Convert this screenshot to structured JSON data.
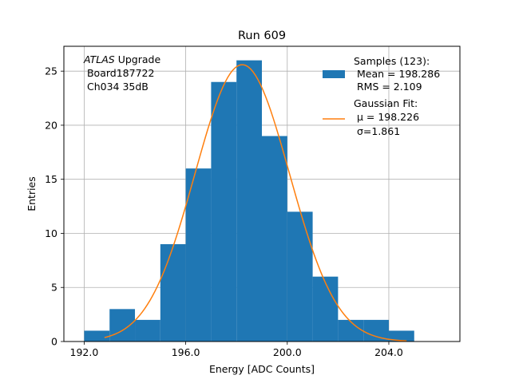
{
  "chart_data": {
    "type": "bar",
    "title": "Run 609",
    "xlabel": "Energy [ADC Counts]",
    "ylabel": "Entries",
    "xlim": [
      191.2,
      206.8
    ],
    "ylim": [
      0,
      27.3
    ],
    "xticks": [
      192.0,
      196.0,
      200.0,
      204.0
    ],
    "xtick_labels": [
      "192.0",
      "196.0",
      "200.0",
      "204.0"
    ],
    "yticks": [
      0,
      5,
      10,
      15,
      20,
      25
    ],
    "ytick_labels": [
      "0",
      "5",
      "10",
      "15",
      "20",
      "25"
    ],
    "grid": true,
    "bin_edges": [
      192,
      193,
      194,
      195,
      196,
      197,
      198,
      199,
      200,
      201,
      202,
      203,
      204,
      205
    ],
    "counts": [
      1,
      3,
      2,
      9,
      16,
      24,
      26,
      19,
      12,
      6,
      2,
      2,
      1
    ],
    "series": [
      {
        "type": "histogram",
        "color": "#1f77b4"
      },
      {
        "type": "line",
        "color": "#ff7f0e",
        "mu": 198.226,
        "sigma": 1.861,
        "amplitude": 25.6,
        "x_range": [
          192.8,
          204.7
        ]
      }
    ],
    "annotation": {
      "lines": [
        {
          "italic": "ATLAS",
          "rest": " Upgrade"
        },
        {
          "text": " Board187722"
        },
        {
          "text": " Ch034 35dB"
        }
      ],
      "placement": "top-left"
    },
    "legend": {
      "placement": "top-right",
      "entries": [
        {
          "lines": [
            "Samples (123):",
            " Mean = 198.286",
            " RMS = 2.109"
          ],
          "marker": "patch",
          "color": "#1f77b4"
        },
        {
          "lines": [
            "Gaussian Fit:",
            " μ = 198.226",
            " σ=1.861"
          ],
          "marker": "line",
          "color": "#ff7f0e"
        }
      ]
    }
  }
}
